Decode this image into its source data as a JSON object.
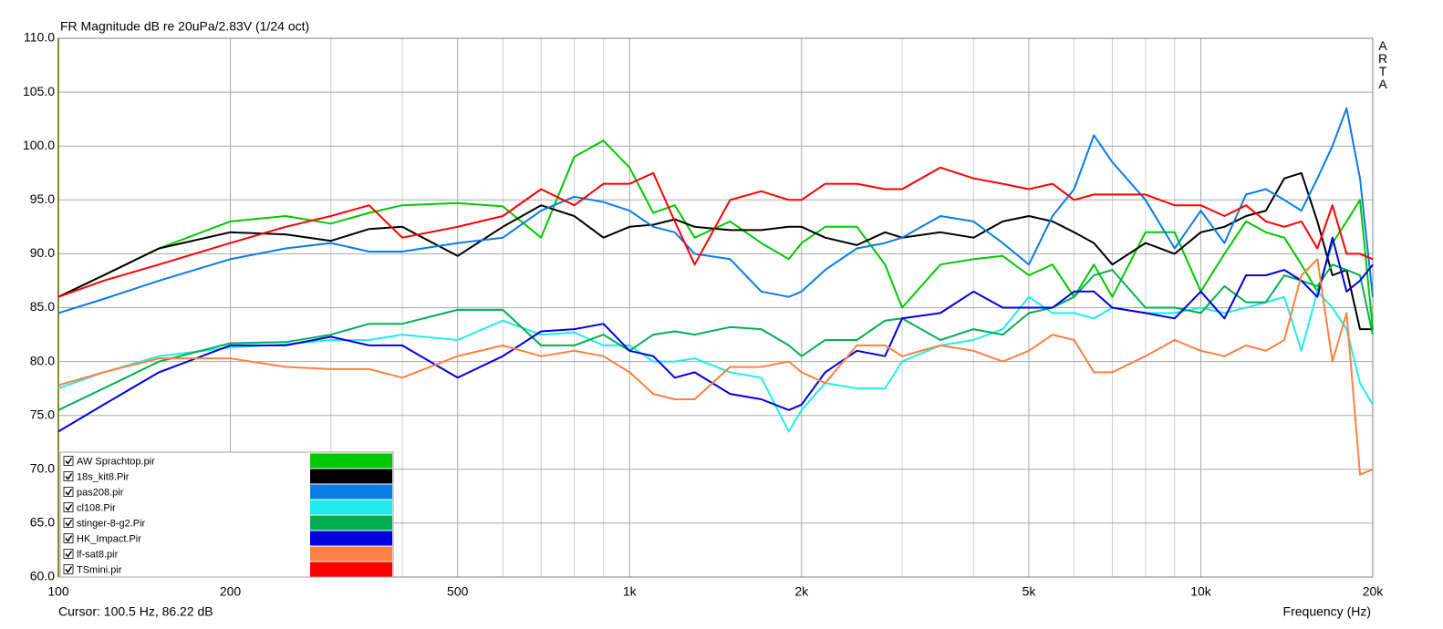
{
  "chart_data": {
    "type": "line",
    "title": "FR Magnitude dB re 20uPa/2.83V (1/24 oct)",
    "x_label": "Frequency (Hz)",
    "cursor": "Cursor: 100.5 Hz, 86.22 dB",
    "watermark": "ARTA",
    "x_log": true,
    "grid": true,
    "legend": "lower left",
    "xlim": [
      100,
      20000
    ],
    "ylim": [
      60,
      110
    ],
    "xticks": [
      100,
      200,
      500,
      {
        "value": 1000,
        "label": "1k"
      },
      {
        "value": 2000,
        "label": "2k"
      },
      {
        "value": 5000,
        "label": "5k"
      },
      {
        "value": 10000,
        "label": "10k"
      },
      {
        "value": 20000,
        "label": "20k"
      }
    ],
    "xminorticks": [
      300,
      400,
      600,
      700,
      800,
      900,
      3000,
      4000,
      6000,
      7000,
      8000,
      9000
    ],
    "yticks": [
      {
        "value": 60,
        "label": "60.0"
      },
      {
        "value": 65,
        "label": "65.0"
      },
      {
        "value": 70,
        "label": "70.0"
      },
      {
        "value": 75,
        "label": "75.0"
      },
      {
        "value": 80,
        "label": "80.0"
      },
      {
        "value": 85,
        "label": "85.0"
      },
      {
        "value": 90,
        "label": "90.0"
      },
      {
        "value": 95,
        "label": "95.0"
      },
      {
        "value": 100,
        "label": "100.0"
      },
      {
        "value": 105,
        "label": "105.0"
      },
      {
        "value": 110,
        "label": "110.0"
      }
    ],
    "x": [
      100,
      120,
      150,
      200,
      250,
      300,
      350,
      400,
      500,
      600,
      700,
      800,
      900,
      1000,
      1100,
      1200,
      1300,
      1500,
      1700,
      1900,
      2000,
      2200,
      2500,
      2800,
      3000,
      3500,
      4000,
      4500,
      5000,
      5500,
      6000,
      6500,
      7000,
      8000,
      9000,
      10000,
      11000,
      12000,
      13000,
      14000,
      15000,
      16000,
      17000,
      18000,
      19000,
      20000
    ],
    "series": [
      {
        "name": "AW Sprachtop.pir",
        "color": "#00c800",
        "values": [
          86,
          88,
          90.5,
          93,
          93.5,
          92.8,
          93.8,
          94.5,
          94.7,
          94.4,
          91.5,
          99,
          100.5,
          98,
          93.8,
          94.5,
          91.5,
          93,
          91,
          89.5,
          91,
          92.5,
          92.5,
          89,
          85,
          89,
          89.5,
          89.8,
          88,
          89,
          86,
          89,
          86,
          92,
          92,
          86.5,
          90,
          93,
          92,
          91.5,
          89,
          86.5,
          91,
          93,
          95,
          83
        ]
      },
      {
        "name": "18s_kit8.Pir",
        "color": "#000000",
        "values": [
          86,
          88,
          90.5,
          92,
          91.8,
          91.2,
          92.3,
          92.5,
          89.8,
          92.5,
          94.5,
          93.5,
          91.5,
          92.5,
          92.7,
          93.2,
          92.5,
          92.2,
          92.2,
          92.5,
          92.5,
          91.5,
          90.8,
          92,
          91.5,
          92,
          91.5,
          93,
          93.5,
          93,
          92,
          91,
          89,
          91,
          90,
          92,
          92.5,
          93.5,
          94,
          97,
          97.5,
          93,
          88,
          88.5,
          83,
          83
        ]
      },
      {
        "name": "pas208.pir",
        "color": "#0a7be8",
        "values": [
          84.5,
          85.8,
          87.5,
          89.5,
          90.5,
          91,
          90.2,
          90.2,
          91,
          91.5,
          94,
          95.3,
          94.8,
          94,
          92.5,
          92,
          90,
          89.5,
          86.5,
          86,
          86.5,
          88.5,
          90.5,
          91,
          91.5,
          93.5,
          93,
          91,
          89,
          93.5,
          96,
          101,
          98.5,
          95,
          90.5,
          94,
          91,
          95.5,
          96,
          95,
          94,
          97,
          100,
          103.5,
          97,
          86
        ]
      },
      {
        "name": "cl108.Pir",
        "color": "#20ecec",
        "values": [
          77.5,
          79,
          80.5,
          81.3,
          81.6,
          82,
          82,
          82.5,
          82,
          83.8,
          82.5,
          82.7,
          81.5,
          81.5,
          80,
          80,
          80.3,
          79,
          78.5,
          73.5,
          75.5,
          78,
          77.5,
          77.5,
          80,
          81.5,
          82,
          83,
          86,
          84.5,
          84.5,
          84,
          85,
          84.5,
          84.5,
          85,
          84.5,
          85,
          85.5,
          86,
          81,
          86.5,
          85,
          83,
          78,
          76
        ]
      },
      {
        "name": "stinger-8-g2.Pir",
        "color": "#00b050",
        "values": [
          75.5,
          77.5,
          80,
          81.7,
          81.8,
          82.5,
          83.5,
          83.5,
          84.8,
          84.8,
          81.5,
          81.5,
          82.5,
          81,
          82.5,
          82.8,
          82.5,
          83.2,
          83,
          81.5,
          80.5,
          82,
          82,
          83.8,
          84,
          82,
          83,
          82.5,
          84.5,
          85,
          86,
          88,
          88.5,
          85,
          85,
          84.5,
          87,
          85.5,
          85.5,
          88,
          87.5,
          87,
          89,
          88.5,
          88,
          82.5
        ]
      },
      {
        "name": "HK_Impact.Pir",
        "color": "#0000e0",
        "values": [
          73.5,
          76,
          79,
          81.5,
          81.5,
          82.3,
          81.5,
          81.5,
          78.5,
          80.5,
          82.8,
          83,
          83.5,
          81,
          80.5,
          78.5,
          79,
          77,
          76.5,
          75.5,
          76,
          79,
          81,
          80.5,
          84,
          84.5,
          86.5,
          85,
          85,
          85,
          86.5,
          86.5,
          85,
          84.5,
          84,
          86.5,
          84,
          88,
          88,
          88.5,
          87.5,
          86,
          91.5,
          86.5,
          87.5,
          89
        ]
      },
      {
        "name": "lf-sat8.pir",
        "color": "#ff8040",
        "values": [
          77.8,
          79,
          80.3,
          80.3,
          79.5,
          79.3,
          79.3,
          78.5,
          80.5,
          81.5,
          80.5,
          81,
          80.5,
          79,
          77,
          76.5,
          76.5,
          79.5,
          79.5,
          80,
          79,
          78,
          81.5,
          81.5,
          80.5,
          81.5,
          81,
          80,
          81,
          82.5,
          82,
          79,
          79,
          80.5,
          82,
          81,
          80.5,
          81.5,
          81,
          82,
          88,
          89.5,
          80,
          84.5,
          69.5,
          70
        ]
      },
      {
        "name": "TSmini.pir",
        "color": "#ff0000",
        "values": [
          86,
          87.5,
          89,
          91,
          92.5,
          93.5,
          94.5,
          91.5,
          92.5,
          93.5,
          96,
          94.5,
          96.5,
          96.5,
          97.5,
          93,
          89,
          95,
          95.8,
          95,
          95,
          96.5,
          96.5,
          96,
          96,
          98,
          97,
          96.5,
          96,
          96.5,
          95,
          95.5,
          95.5,
          95.5,
          94.5,
          94.5,
          93.5,
          94.5,
          93,
          92.5,
          93,
          90.5,
          94.5,
          90,
          90,
          89.5
        ]
      }
    ]
  }
}
